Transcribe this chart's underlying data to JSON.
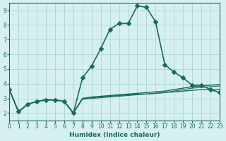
{
  "xlabel": "Humidex (Indice chaleur)",
  "ylabel": "",
  "xlim": [
    0,
    23
  ],
  "ylim": [
    1.5,
    9.5
  ],
  "yticks": [
    2,
    3,
    4,
    5,
    6,
    7,
    8,
    9
  ],
  "xticks": [
    0,
    1,
    2,
    3,
    4,
    5,
    6,
    7,
    8,
    9,
    10,
    11,
    12,
    13,
    14,
    15,
    16,
    17,
    18,
    19,
    20,
    21,
    22,
    23
  ],
  "bg_color": "#d6f0f0",
  "grid_color": "#b0d8d8",
  "line_color": "#1a6b5a",
  "lines": [
    {
      "x": [
        0,
        1,
        2,
        3,
        4,
        5,
        6,
        7,
        8,
        9,
        10,
        11,
        12,
        13,
        14,
        15,
        16,
        17,
        18,
        19,
        20,
        21,
        22,
        23
      ],
      "y": [
        3.6,
        2.1,
        2.6,
        2.8,
        2.9,
        2.9,
        2.8,
        2.0,
        4.4,
        5.2,
        6.4,
        7.7,
        8.1,
        8.1,
        9.3,
        9.2,
        8.2,
        5.3,
        4.8,
        4.4,
        3.9,
        3.9,
        3.6,
        3.4
      ],
      "marker": "D",
      "markersize": 3.0,
      "linewidth": 1.2
    },
    {
      "x": [
        0,
        1,
        2,
        3,
        4,
        5,
        6,
        7,
        8,
        9,
        10,
        11,
        12,
        13,
        14,
        15,
        16,
        17,
        18,
        19,
        20,
        21,
        22,
        23
      ],
      "y": [
        3.6,
        2.1,
        2.6,
        2.8,
        2.9,
        2.9,
        2.8,
        2.0,
        3.0,
        3.05,
        3.1,
        3.15,
        3.2,
        3.25,
        3.3,
        3.3,
        3.35,
        3.4,
        3.45,
        3.5,
        3.55,
        3.6,
        3.6,
        3.6
      ],
      "marker": null,
      "markersize": 0,
      "linewidth": 1.0
    },
    {
      "x": [
        0,
        1,
        2,
        3,
        4,
        5,
        6,
        7,
        8,
        9,
        10,
        11,
        12,
        13,
        14,
        15,
        16,
        17,
        18,
        19,
        20,
        21,
        22,
        23
      ],
      "y": [
        3.6,
        2.1,
        2.6,
        2.8,
        2.9,
        2.9,
        2.8,
        2.0,
        3.0,
        3.1,
        3.15,
        3.2,
        3.25,
        3.3,
        3.35,
        3.4,
        3.45,
        3.5,
        3.6,
        3.7,
        3.8,
        3.85,
        3.9,
        3.95
      ],
      "marker": null,
      "markersize": 0,
      "linewidth": 1.0
    },
    {
      "x": [
        0,
        1,
        2,
        3,
        4,
        5,
        6,
        7,
        8,
        9,
        10,
        11,
        12,
        13,
        14,
        15,
        16,
        17,
        18,
        19,
        20,
        21,
        22,
        23
      ],
      "y": [
        3.6,
        2.1,
        2.6,
        2.8,
        2.9,
        2.9,
        2.8,
        2.0,
        2.95,
        3.0,
        3.05,
        3.1,
        3.15,
        3.2,
        3.25,
        3.3,
        3.35,
        3.4,
        3.5,
        3.6,
        3.7,
        3.75,
        3.8,
        3.85
      ],
      "marker": null,
      "markersize": 0,
      "linewidth": 0.8
    }
  ]
}
